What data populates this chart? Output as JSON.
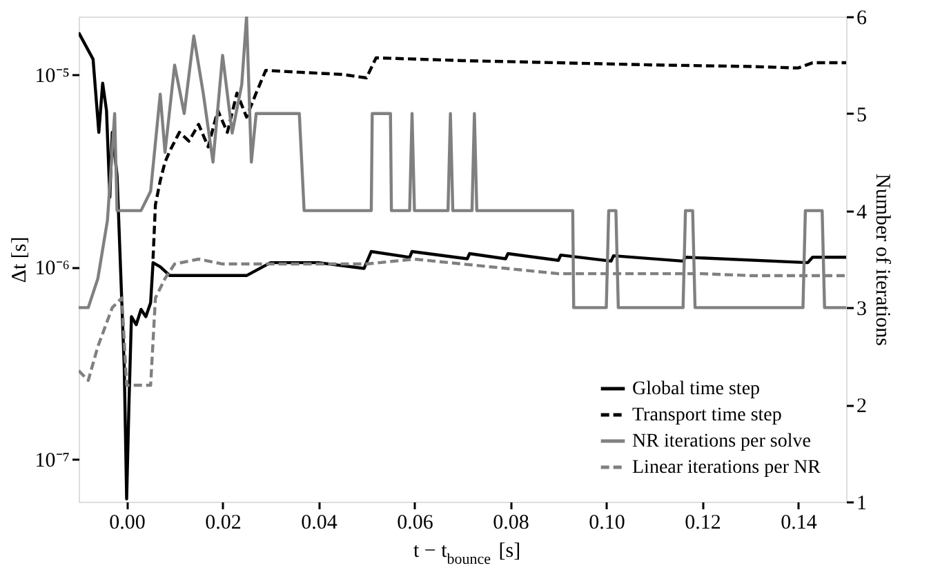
{
  "chart_data": {
    "type": "line",
    "xlabel": "t − t$_{bounce}$ [s]",
    "ylabel": "Δt [s]",
    "y2label": "Number of iterations",
    "log": "y",
    "legend": "bottom right",
    "xlim": [
      -0.01,
      0.15
    ],
    "xticks": [
      {
        "value": 0,
        "label": "0.00"
      },
      {
        "value": 0.02,
        "label": "0.02"
      },
      {
        "value": 0.04,
        "label": "0.04"
      },
      {
        "value": 0.06,
        "label": "0.06"
      },
      {
        "value": 0.08,
        "label": "0.08"
      },
      {
        "value": 0.1,
        "label": "0.10"
      },
      {
        "value": 0.12,
        "label": "0.12"
      },
      {
        "value": 0.14,
        "label": "0.14"
      }
    ],
    "ylim": [
      6e-08,
      2e-05
    ],
    "yticks": [
      {
        "value": 1e-07,
        "label": "10⁻⁷"
      },
      {
        "value": 1e-06,
        "label": "10⁻⁶"
      },
      {
        "value": 1e-05,
        "label": "10⁻⁵"
      }
    ],
    "y2lim": [
      1,
      6
    ],
    "y2ticks": [
      1,
      2,
      3,
      4,
      5,
      6
    ],
    "series": [
      {
        "name": "Global time step",
        "color": "#000000",
        "line_style": "solid",
        "x": [
          -0.01,
          -0.007,
          -0.0058,
          -0.005,
          -0.0042,
          -0.0035,
          -0.003,
          -0.002,
          -0.0005,
          0.0,
          0.0005,
          0.001,
          0.002,
          0.003,
          0.004,
          0.005,
          0.0055,
          0.007,
          0.009,
          0.015,
          0.025,
          0.03,
          0.04,
          0.0495,
          0.051,
          0.059,
          0.0595,
          0.071,
          0.0715,
          0.079,
          0.0795,
          0.09,
          0.0905,
          0.101,
          0.1015,
          0.116,
          0.1165,
          0.142,
          0.143,
          0.15
        ],
        "values": [
          1.65e-05,
          1.2e-05,
          5e-06,
          9e-06,
          6.5e-06,
          2.3e-06,
          5e-06,
          3e-06,
          3e-07,
          6.2e-08,
          2e-07,
          5.5e-07,
          5e-07,
          6e-07,
          5.5e-07,
          6.5e-07,
          1.05e-06,
          1e-06,
          9e-07,
          9e-07,
          9e-07,
          1.05e-06,
          1.05e-06,
          9.8e-07,
          1.2e-06,
          1.12e-06,
          1.2e-06,
          1.1e-06,
          1.17e-06,
          1.1e-06,
          1.17e-06,
          1.08e-06,
          1.15e-06,
          1.07e-06,
          1.14e-06,
          1.07e-06,
          1.12e-06,
          1.05e-06,
          1.12e-06,
          1.12e-06
        ]
      },
      {
        "name": "Transport time step",
        "color": "#000000",
        "line_style": "dashed",
        "x": [
          0.0055,
          0.006,
          0.007,
          0.008,
          0.009,
          0.011,
          0.013,
          0.015,
          0.017,
          0.019,
          0.021,
          0.023,
          0.025,
          0.027,
          0.029,
          0.035,
          0.045,
          0.05,
          0.052,
          0.07,
          0.09,
          0.11,
          0.13,
          0.14,
          0.143,
          0.15
        ],
        "values": [
          1.1e-06,
          2.1e-06,
          2.8e-06,
          3.5e-06,
          4e-06,
          5e-06,
          4.5e-06,
          5.5e-06,
          4.2e-06,
          6.5e-06,
          5e-06,
          8e-06,
          6e-06,
          8e-06,
          1.05e-05,
          1.03e-05,
          1e-05,
          9.6e-06,
          1.22e-05,
          1.18e-05,
          1.15e-05,
          1.12e-05,
          1.1e-05,
          1.08e-05,
          1.15e-05,
          1.15e-05
        ]
      },
      {
        "name": "NR iterations per solve",
        "color": "#808080",
        "line_style": "solid",
        "axis": "y2",
        "x": [
          -0.01,
          -0.008,
          -0.006,
          -0.004,
          -0.0025,
          -0.002,
          0.0,
          0.003,
          0.005,
          0.007,
          0.008,
          0.01,
          0.012,
          0.014,
          0.016,
          0.018,
          0.02,
          0.022,
          0.024,
          0.025,
          0.026,
          0.027,
          0.036,
          0.037,
          0.051,
          0.0512,
          0.055,
          0.0552,
          0.059,
          0.0595,
          0.06,
          0.067,
          0.0675,
          0.068,
          0.072,
          0.0725,
          0.073,
          0.093,
          0.0932,
          0.1,
          0.1005,
          0.102,
          0.1025,
          0.116,
          0.1165,
          0.118,
          0.1185,
          0.141,
          0.1415,
          0.145,
          0.1455,
          0.15
        ],
        "values": [
          3,
          3,
          3.3,
          3.9,
          5,
          4,
          4,
          4,
          4.2,
          5.2,
          4.6,
          5.5,
          5.0,
          5.8,
          5.2,
          4.5,
          5.6,
          4.8,
          5.3,
          6,
          4.5,
          5,
          5,
          4,
          4,
          5,
          5,
          4,
          4,
          5,
          4,
          4,
          5,
          4,
          4,
          5,
          4,
          4,
          3,
          3,
          4,
          4,
          3,
          3,
          4,
          4,
          3,
          3,
          4,
          4,
          3,
          3
        ]
      },
      {
        "name": "Linear iterations per NR",
        "color": "#808080",
        "line_style": "dashed",
        "axis": "y2",
        "x": [
          -0.01,
          -0.008,
          -0.006,
          -0.003,
          -0.001,
          0.0,
          0.002,
          0.005,
          0.006,
          0.008,
          0.01,
          0.015,
          0.02,
          0.03,
          0.04,
          0.05,
          0.06,
          0.07,
          0.08,
          0.09,
          0.1,
          0.11,
          0.12,
          0.13,
          0.14,
          0.15
        ],
        "values": [
          2.35,
          2.25,
          2.6,
          3.0,
          3.1,
          2.2,
          2.2,
          2.2,
          3.1,
          3.3,
          3.45,
          3.5,
          3.45,
          3.45,
          3.45,
          3.45,
          3.5,
          3.45,
          3.4,
          3.35,
          3.35,
          3.35,
          3.35,
          3.33,
          3.33,
          3.33
        ]
      }
    ]
  }
}
